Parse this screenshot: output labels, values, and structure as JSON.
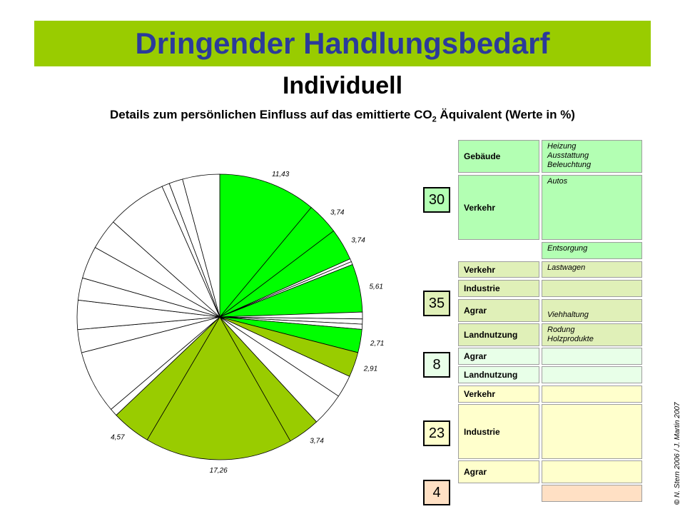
{
  "header": {
    "title": "Dringender Handlungsbedarf",
    "subtitle": "Individuell",
    "caption_before": "Details zum persönlichen Einfluss auf das emittierte CO",
    "caption_sub": "2",
    "caption_after": " Äquivalent (Werte in %)"
  },
  "colors": {
    "banner": "#99cc00",
    "title": "#2b3a9b",
    "pie_bright_green": "#00ff00",
    "pie_olive_green": "#99cc00",
    "pie_white": "#ffffff",
    "group_green": "#b3ffb3",
    "group_olive": "#e0f0b8",
    "group_light_green": "#e8ffe8",
    "group_yellow": "#ffffcc",
    "group_peach": "#ffe0c4"
  },
  "chart_data": {
    "type": "pie",
    "start_angle_deg": 0,
    "direction": "clockwise",
    "slices": [
      {
        "value": 11.43,
        "label": "11,43",
        "color": "#00ff00"
      },
      {
        "value": 3.74,
        "label": "3,74",
        "color": "#00ff00"
      },
      {
        "value": 3.74,
        "label": "3,74",
        "color": "#00ff00"
      },
      {
        "value": 0.35,
        "label": "",
        "color": "#ffffff"
      },
      {
        "value": 0.35,
        "label": "",
        "color": "#ffffff"
      },
      {
        "value": 5.61,
        "label": "5,61",
        "color": "#00ff00"
      },
      {
        "value": 0.8,
        "label": "",
        "color": "#ffffff"
      },
      {
        "value": 0.6,
        "label": "",
        "color": "#ffffff"
      },
      {
        "value": 0.6,
        "label": "",
        "color": "#ffffff"
      },
      {
        "value": 2.71,
        "label": "2,71",
        "color": "#00ff00"
      },
      {
        "value": 2.91,
        "label": "2,91",
        "color": "#99cc00"
      },
      {
        "value": 2.6,
        "label": "",
        "color": "#ffffff"
      },
      {
        "value": 3.9,
        "label": "",
        "color": "#ffffff"
      },
      {
        "value": 3.74,
        "label": "3,74",
        "color": "#99cc00"
      },
      {
        "value": 17.26,
        "label": "17,26",
        "color": "#99cc00"
      },
      {
        "value": 4.57,
        "label": "4,57",
        "color": "#99cc00"
      },
      {
        "value": 0.9,
        "label": "",
        "color": "#ffffff"
      },
      {
        "value": 7.4,
        "label": "",
        "color": "#ffffff"
      },
      {
        "value": 2.7,
        "label": "",
        "color": "#ffffff"
      },
      {
        "value": 3.4,
        "label": "",
        "color": "#ffffff"
      },
      {
        "value": 2.6,
        "label": "",
        "color": "#ffffff"
      },
      {
        "value": 3.8,
        "label": "",
        "color": "#ffffff"
      },
      {
        "value": 3.6,
        "label": "",
        "color": "#ffffff"
      },
      {
        "value": 7.0,
        "label": "",
        "color": "#ffffff"
      },
      {
        "value": 0.9,
        "label": "",
        "color": "#ffffff"
      },
      {
        "value": 1.6,
        "label": "",
        "color": "#ffffff"
      },
      {
        "value": 4.34,
        "label": "",
        "color": "#ffffff"
      }
    ]
  },
  "table": {
    "groups": [
      {
        "value": "30",
        "color": "#b3ffb3",
        "rows": [
          {
            "label": "Gebäude",
            "detail": "Heizung\nAusstattung\nBeleuchtung"
          },
          {
            "label": "Verkehr",
            "detail": "Autos"
          },
          {
            "label": "",
            "detail": "Entsorgung"
          }
        ]
      },
      {
        "value": "35",
        "color": "#e0f0b8",
        "rows": [
          {
            "label": "Verkehr",
            "detail": "Lastwagen"
          },
          {
            "label": "Industrie",
            "detail": ""
          },
          {
            "label": "Agrar",
            "detail": "Viehhaltung"
          },
          {
            "label": "Landnutzung",
            "detail": "Rodung\nHolzprodukte"
          }
        ]
      },
      {
        "value": "8",
        "color": "#e8ffe8",
        "rows": [
          {
            "label": "Agrar",
            "detail": ""
          },
          {
            "label": "Landnutzung",
            "detail": ""
          }
        ]
      },
      {
        "value": "23",
        "color": "#ffffcc",
        "rows": [
          {
            "label": "Verkehr",
            "detail": ""
          },
          {
            "label": "Industrie",
            "detail": ""
          },
          {
            "label": "Agrar",
            "detail": ""
          }
        ]
      },
      {
        "value": "4",
        "color": "#ffe0c4",
        "rows": [
          {
            "label": "",
            "detail": ""
          }
        ]
      }
    ]
  },
  "credit": {
    "symbol": "©",
    "text": " N. Stern 2006 / J. Martin 2007"
  }
}
